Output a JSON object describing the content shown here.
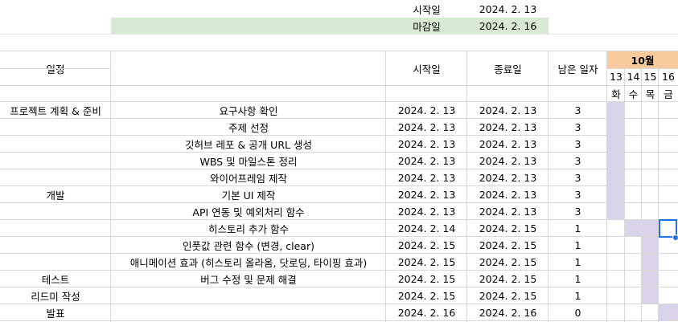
{
  "top_info": {
    "start_label": "시작일",
    "start_value": "2024. 2. 13",
    "end_label": "마감일",
    "end_value": "2024. 2. 16"
  },
  "headers": {
    "schedule": "일정",
    "start": "시작일",
    "end": "종료일",
    "remaining": "남은 일자",
    "month": "10월",
    "days": [
      "13",
      "14",
      "15",
      "16"
    ],
    "weekdays": [
      "화",
      "수",
      "목",
      "금"
    ]
  },
  "rows": [
    {
      "phase": "프로젝트 계획 & 준비",
      "task": "요구사항 확인",
      "start": "2024. 2. 13",
      "end": "2024. 2. 13",
      "remaining": "3"
    },
    {
      "phase": "",
      "task": "주제 선정",
      "start": "2024. 2. 13",
      "end": "2024. 2. 13",
      "remaining": "3"
    },
    {
      "phase": "",
      "task": "깃허브 레포 & 공개 URL 생성",
      "start": "2024. 2. 13",
      "end": "2024. 2. 13",
      "remaining": "3"
    },
    {
      "phase": "",
      "task": "WBS 및 마일스톤 정리",
      "start": "2024. 2. 13",
      "end": "2024. 2. 13",
      "remaining": "3"
    },
    {
      "phase": "",
      "task": "와이어프레임 제작",
      "start": "2024. 2. 13",
      "end": "2024. 2. 13",
      "remaining": "3"
    },
    {
      "phase": "개발",
      "task": "기본 UI 제작",
      "start": "2024. 2. 13",
      "end": "2024. 2. 13",
      "remaining": "3"
    },
    {
      "phase": "",
      "task": "API 연동 및 예외처리 함수",
      "start": "2024. 2. 13",
      "end": "2024. 2. 13",
      "remaining": "3"
    },
    {
      "phase": "",
      "task": "히스토리 추가 함수",
      "start": "2024. 2. 14",
      "end": "2024. 2. 15",
      "remaining": "1"
    },
    {
      "phase": "",
      "task": "인풋값 관련 함수 (변경, clear)",
      "start": "2024. 2. 15",
      "end": "2024. 2. 15",
      "remaining": "1"
    },
    {
      "phase": "",
      "task": "애니메이션 효과 (히스토리 올라옴, 닷로딩, 타이핑 효과)",
      "start": "2024. 2. 15",
      "end": "2024. 2. 15",
      "remaining": "1"
    },
    {
      "phase": "테스트",
      "task": "버그 수정 및 문제 해결",
      "start": "2024. 2. 15",
      "end": "2024. 2. 15",
      "remaining": "1"
    },
    {
      "phase": "리드미 작성",
      "task": "",
      "start": "2024. 2. 15",
      "end": "2024. 2. 15",
      "remaining": "1"
    },
    {
      "phase": "발표",
      "task": "",
      "start": "2024. 2. 16",
      "end": "2024. 2. 16",
      "remaining": "0"
    }
  ],
  "gantt_fill": [
    [
      1,
      0,
      0,
      0
    ],
    [
      1,
      0,
      0,
      0
    ],
    [
      1,
      0,
      0,
      0
    ],
    [
      1,
      0,
      0,
      0
    ],
    [
      1,
      0,
      0,
      0
    ],
    [
      1,
      0,
      0,
      0
    ],
    [
      1,
      0,
      0,
      0
    ],
    [
      0,
      1,
      1,
      0
    ],
    [
      0,
      0,
      1,
      0
    ],
    [
      0,
      0,
      1,
      0
    ],
    [
      0,
      0,
      1,
      0
    ],
    [
      0,
      0,
      1,
      0
    ],
    [
      0,
      0,
      0,
      1
    ]
  ],
  "colors": {
    "green": "#d9ead3",
    "orange": "#f9cb9c",
    "purple": "#d9d2e9",
    "selection": "#1a73e8",
    "grid": "#d9d9d9"
  }
}
